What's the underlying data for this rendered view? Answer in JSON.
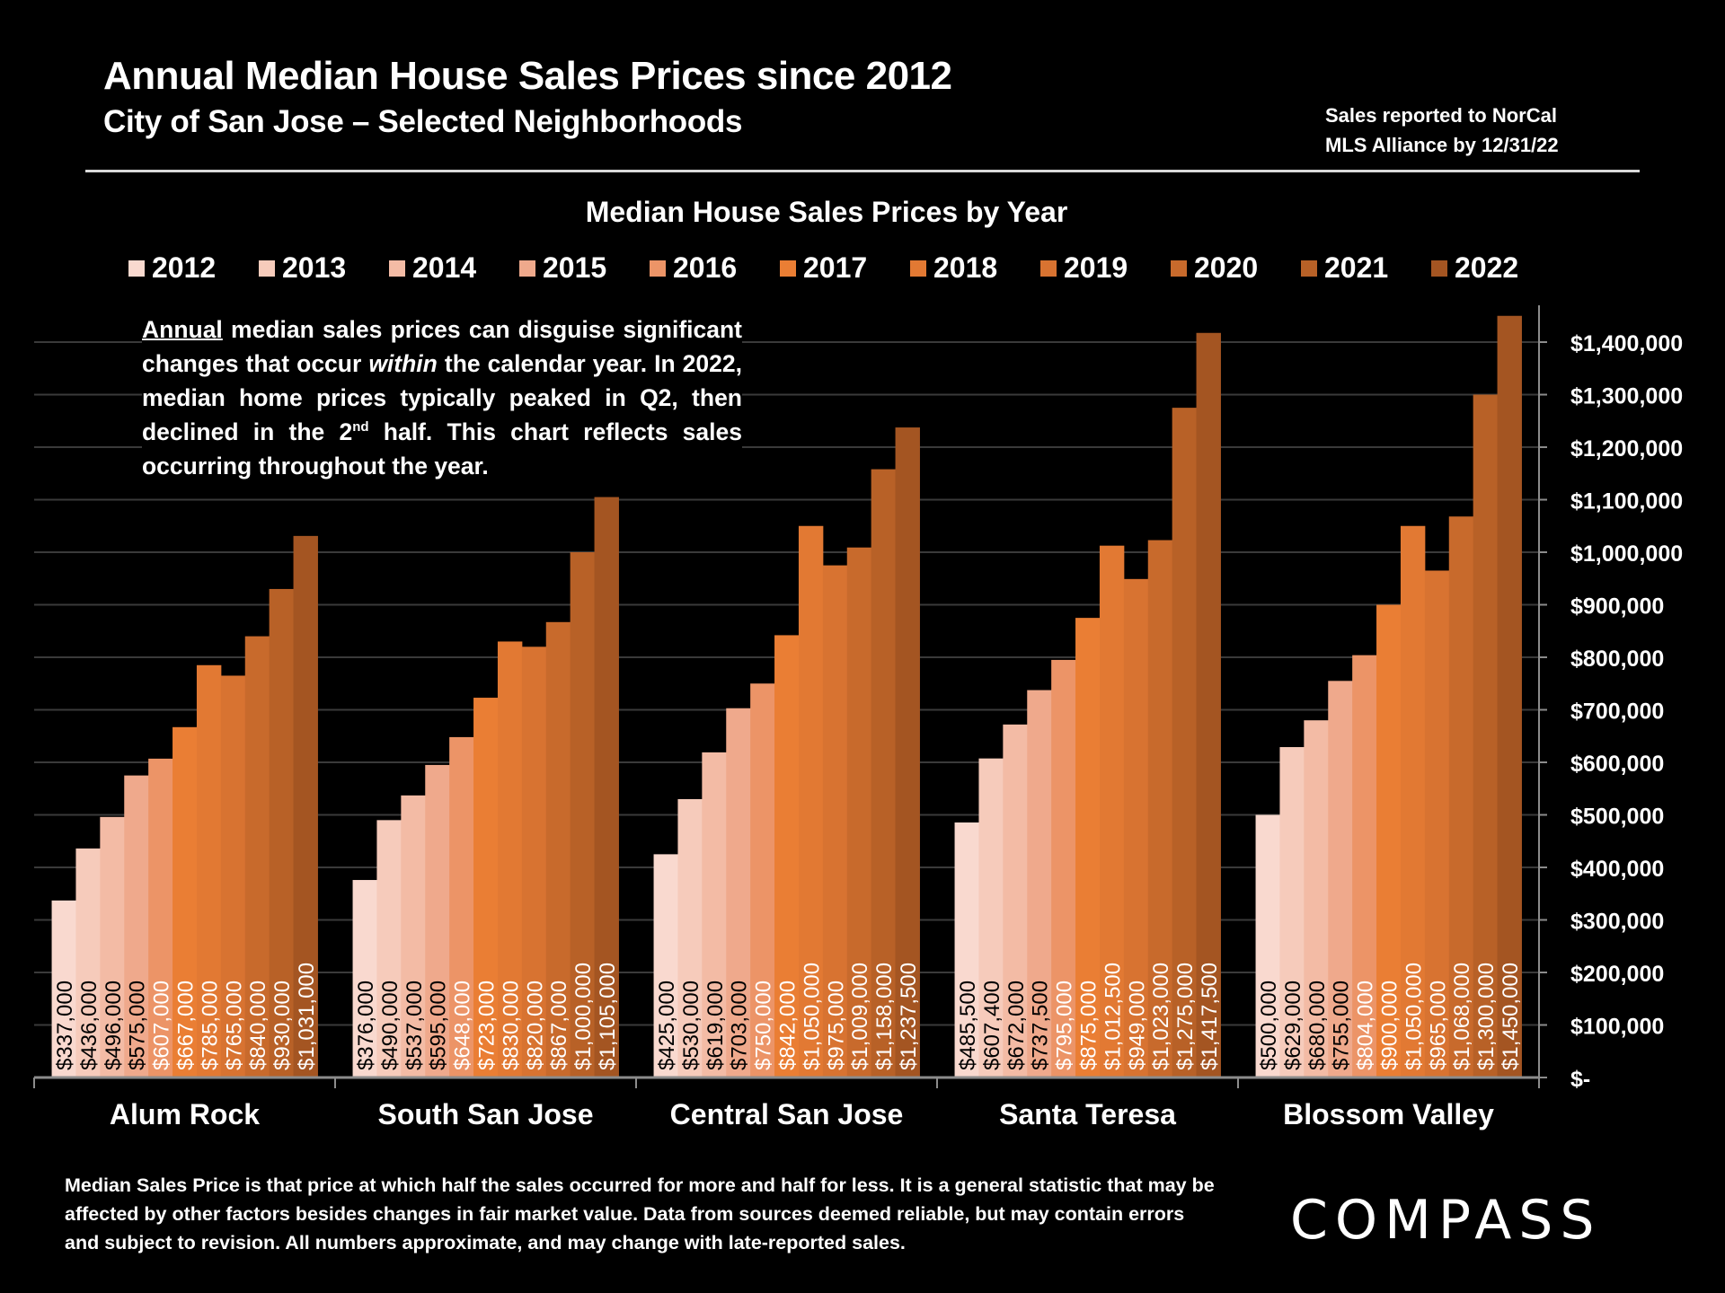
{
  "header": {
    "title": "Annual Median House Sales Prices since 2012",
    "subtitle": "City of San Jose – Selected Neighborhoods",
    "source_line1": "Sales reported to NorCal",
    "source_line2": "MLS Alliance by 12/31/22"
  },
  "note": {
    "lead": "Annual",
    "part1": " median sales prices can disguise significant changes that occur ",
    "emph": "within",
    "part2": " the calendar year. In 2022, median home prices typically peaked in Q2, then declined in the 2",
    "sup": "nd",
    "part3": " half. This chart reflects sales occurring throughout the year."
  },
  "footer": {
    "disclaimer": "Median Sales Price is that price at which half the sales occurred for more and half for less. It is a general statistic that may be affected by other factors besides changes in fair market value. Data from sources deemed reliable, but may contain errors and subject to revision.  All numbers approximate, and may change with late-reported sales.",
    "logo": "COMPASS"
  },
  "chart_data": {
    "type": "bar",
    "title": "Median House Sales Prices by Year",
    "xlabel": "",
    "ylabel": "",
    "ylim": [
      0,
      1400000
    ],
    "yticks": [
      0,
      100000,
      200000,
      300000,
      400000,
      500000,
      600000,
      700000,
      800000,
      900000,
      1000000,
      1100000,
      1200000,
      1300000,
      1400000
    ],
    "ytick_labels": [
      "$-",
      "$100,000",
      "$200,000",
      "$300,000",
      "$400,000",
      "$500,000",
      "$600,000",
      "$700,000",
      "$800,000",
      "$900,000",
      "$1,000,000",
      "$1,100,000",
      "$1,200,000",
      "$1,300,000",
      "$1,400,000"
    ],
    "y_axis_side": "right",
    "grid": true,
    "legend_position": "top",
    "categories": [
      "Alum Rock",
      "South San Jose",
      "Central San Jose",
      "Santa Teresa",
      "Blossom Valley"
    ],
    "series": [
      {
        "name": "2012",
        "color": "#F9D9CF",
        "label_color": "#000000",
        "values": [
          337000,
          376000,
          425000,
          485500,
          500000
        ]
      },
      {
        "name": "2013",
        "color": "#F6CBBB",
        "label_color": "#000000",
        "values": [
          436000,
          490000,
          530000,
          607400,
          629000
        ]
      },
      {
        "name": "2014",
        "color": "#F3BBA5",
        "label_color": "#000000",
        "values": [
          496000,
          537000,
          619000,
          672000,
          680000
        ]
      },
      {
        "name": "2015",
        "color": "#EFA98C",
        "label_color": "#000000",
        "values": [
          575000,
          595000,
          703000,
          737500,
          755000
        ]
      },
      {
        "name": "2016",
        "color": "#EC9467",
        "label_color": "#FFFFFF",
        "values": [
          607000,
          648000,
          750000,
          795000,
          804000
        ]
      },
      {
        "name": "2017",
        "color": "#EA7E34",
        "label_color": "#FFFFFF",
        "values": [
          667000,
          723000,
          842000,
          875000,
          900000
        ]
      },
      {
        "name": "2018",
        "color": "#E27933",
        "label_color": "#FFFFFF",
        "values": [
          785000,
          830000,
          1050000,
          1012500,
          1050000
        ]
      },
      {
        "name": "2019",
        "color": "#D87331",
        "label_color": "#FFFFFF",
        "values": [
          765000,
          820000,
          975000,
          949000,
          965000
        ]
      },
      {
        "name": "2020",
        "color": "#C86A2C",
        "label_color": "#FFFFFF",
        "values": [
          840000,
          867000,
          1009000,
          1023000,
          1068000
        ]
      },
      {
        "name": "2021",
        "color": "#B86127",
        "label_color": "#FFFFFF",
        "values": [
          930000,
          1000000,
          1158000,
          1275000,
          1300000
        ]
      },
      {
        "name": "2022",
        "color": "#A45522",
        "label_color": "#FFFFFF",
        "values": [
          1031000,
          1105000,
          1237500,
          1417500,
          1450000
        ]
      }
    ],
    "data_labels": [
      [
        "$337,000",
        "$436,000",
        "$496,000",
        "$575,000",
        "$607,000",
        "$667,000",
        "$785,000",
        "$765,000",
        "$840,000",
        "$930,000",
        "$1,031,000"
      ],
      [
        "$376,000",
        "$490,000",
        "$537,000",
        "$595,000",
        "$648,000",
        "$723,000",
        "$830,000",
        "$820,000",
        "$867,000",
        "$1,000,000",
        "$1,105,000"
      ],
      [
        "$425,000",
        "$530,000",
        "$619,000",
        "$703,000",
        "$750,000",
        "$842,000",
        "$1,050,000",
        "$975,000",
        "$1,009,000",
        "$1,158,000",
        "$1,237,500"
      ],
      [
        "$485,500",
        "$607,400",
        "$672,000",
        "$737,500",
        "$795,000",
        "$875,000",
        "$1,012,500",
        "$949,000",
        "$1,023,000",
        "$1,275,000",
        "$1,417,500"
      ],
      [
        "$500,000",
        "$629,000",
        "$680,000",
        "$755,000",
        "$804,000",
        "$900,000",
        "$1,050,000",
        "$965,000",
        "$1,068,000",
        "$1,300,000",
        "$1,450,000"
      ]
    ]
  }
}
